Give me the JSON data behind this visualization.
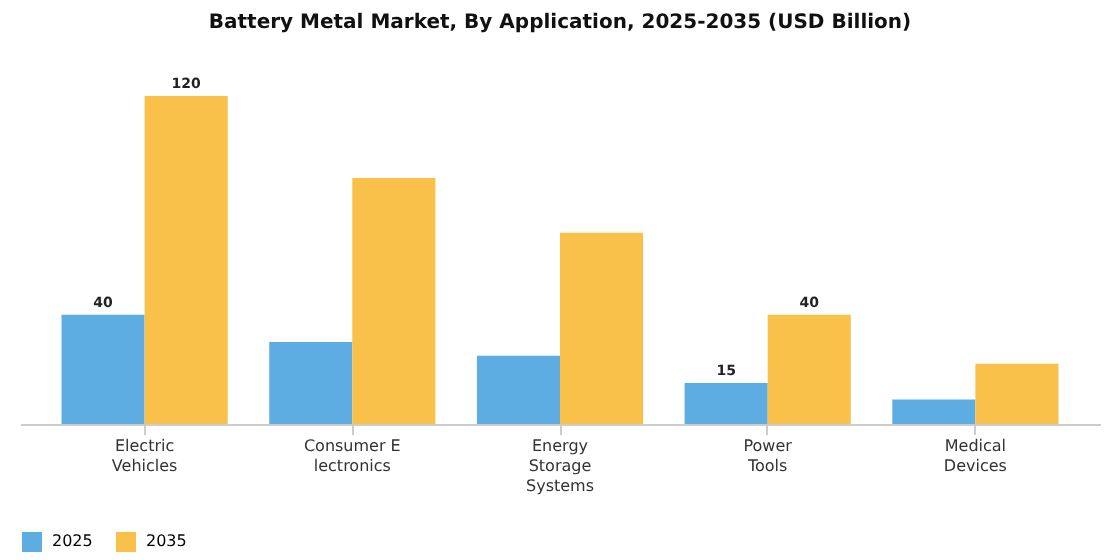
{
  "chart_data": {
    "type": "bar",
    "title": "Battery Metal Market, By Application, 2025-2035 (USD Billion)",
    "categories": [
      "Electric\nVehicles",
      "Consumer E\nlectronics",
      "Energy\nStorage\nSystems",
      "Power\nTools",
      "Medical\nDevices"
    ],
    "series": [
      {
        "name": "2025",
        "color": "#5dade2",
        "values": [
          40,
          30,
          25,
          15,
          9
        ],
        "value_labels": [
          "40",
          null,
          null,
          "15",
          null
        ]
      },
      {
        "name": "2035",
        "color": "#f9c04a",
        "values": [
          120,
          90,
          70,
          40,
          22
        ],
        "value_labels": [
          "120",
          null,
          null,
          "40",
          null
        ]
      }
    ],
    "legend": "bottom",
    "grid": false
  }
}
